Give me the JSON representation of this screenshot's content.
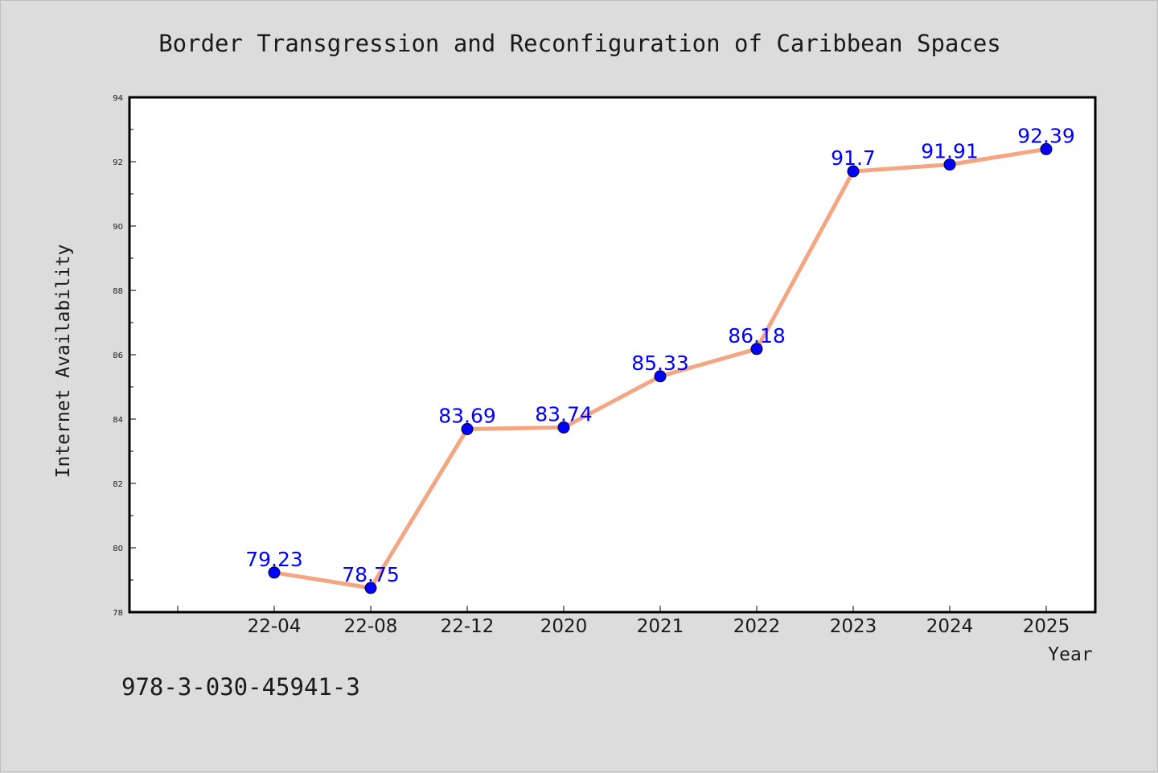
{
  "chart_data": {
    "type": "line",
    "title": "Border Transgression and Reconfiguration of Caribbean Spaces",
    "xlabel": "Year",
    "ylabel": "Internet Availability",
    "categories": [
      "22-04",
      "22-08",
      "22-12",
      "2020",
      "2021",
      "2022",
      "2023",
      "2024",
      "2025"
    ],
    "series": [
      {
        "values": [
          79.23,
          78.75,
          83.69,
          83.74,
          85.33,
          86.18,
          91.7,
          91.91,
          92.39
        ],
        "labels": [
          "79.23",
          "78.75",
          "83.69",
          "83.74",
          "85.33",
          "86.18",
          "91.7",
          "91.91",
          "92.39"
        ]
      }
    ],
    "ylim": [
      78,
      94
    ],
    "yticks": [
      78,
      80,
      82,
      84,
      86,
      88,
      90,
      92,
      94
    ],
    "ytick_labels": [
      "78",
      "80",
      "82",
      "84",
      "86",
      "88",
      "90",
      "92",
      "94"
    ],
    "grid": false,
    "legend": "none",
    "colors": {
      "line": "#f4a582",
      "marker": "#0000ff",
      "data_label": "#0000ff",
      "background": "#dcdcdc",
      "plot_background": "#ffffff"
    }
  },
  "footer": {
    "isbn": "978-3-030-45941-3"
  }
}
